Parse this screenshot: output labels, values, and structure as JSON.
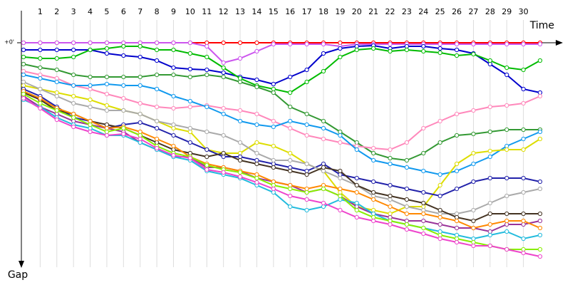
{
  "chart_data": {
    "type": "line",
    "x_label": "Time",
    "y_label": "Gap",
    "x": [
      0,
      1,
      2,
      3,
      4,
      5,
      6,
      7,
      8,
      9,
      10,
      11,
      12,
      13,
      14,
      15,
      16,
      17,
      18,
      19,
      20,
      21,
      22,
      23,
      24,
      25,
      26,
      27,
      28,
      29,
      30,
      31
    ],
    "xlim": [
      0,
      31
    ],
    "xticks": [
      1,
      2,
      3,
      4,
      5,
      6,
      7,
      8,
      9,
      10,
      11,
      12,
      13,
      14,
      15,
      16,
      17,
      18,
      19,
      20,
      21,
      22,
      23,
      24,
      25,
      26,
      27,
      28,
      29,
      30
    ],
    "ylim": [
      0,
      315
    ],
    "yticks": [
      {
        "value": 0,
        "label": "+0'"
      }
    ],
    "grid": true,
    "series": [
      {
        "color": "#ff0000",
        "values": [
          0,
          0,
          0,
          0,
          0,
          0,
          0,
          0,
          0,
          0,
          0,
          0,
          0,
          0,
          0,
          0,
          0,
          0,
          0,
          0,
          0,
          0,
          0,
          0,
          0,
          0,
          0,
          0,
          0,
          0,
          0,
          0
        ]
      },
      {
        "color": "#cc55ee",
        "values": [
          0,
          0,
          0,
          0,
          0,
          0,
          0,
          0,
          0,
          0,
          0,
          5,
          28,
          22,
          12,
          2,
          2,
          2,
          2,
          5,
          2,
          2,
          2,
          2,
          2,
          2,
          2,
          2,
          2,
          2,
          2,
          2
        ]
      },
      {
        "color": "#0000cc",
        "values": [
          10,
          10,
          10,
          10,
          10,
          15,
          18,
          20,
          25,
          35,
          37,
          38,
          42,
          48,
          52,
          58,
          48,
          38,
          15,
          8,
          5,
          4,
          8,
          5,
          5,
          8,
          10,
          15,
          30,
          45,
          65,
          70
        ]
      },
      {
        "color": "#00bb00",
        "values": [
          20,
          22,
          22,
          20,
          10,
          8,
          5,
          5,
          10,
          10,
          15,
          20,
          35,
          50,
          60,
          65,
          70,
          55,
          40,
          20,
          10,
          8,
          12,
          10,
          12,
          14,
          18,
          16,
          25,
          35,
          38,
          25
        ]
      },
      {
        "color": "#339933",
        "values": [
          30,
          35,
          38,
          45,
          48,
          48,
          48,
          48,
          45,
          45,
          48,
          45,
          48,
          55,
          62,
          70,
          90,
          100,
          110,
          125,
          140,
          155,
          162,
          165,
          155,
          140,
          130,
          128,
          125,
          122,
          122,
          122
        ]
      },
      {
        "color": "#ff88bb",
        "values": [
          40,
          45,
          50,
          60,
          65,
          72,
          78,
          85,
          90,
          92,
          90,
          88,
          92,
          95,
          100,
          110,
          120,
          130,
          135,
          140,
          145,
          148,
          150,
          140,
          120,
          110,
          100,
          95,
          90,
          88,
          85,
          75
        ]
      },
      {
        "color": "#1199ee",
        "values": [
          45,
          50,
          55,
          60,
          60,
          58,
          60,
          60,
          65,
          75,
          82,
          90,
          100,
          110,
          115,
          118,
          110,
          115,
          120,
          130,
          150,
          165,
          170,
          175,
          180,
          185,
          180,
          170,
          160,
          145,
          135,
          125
        ]
      },
      {
        "color": "#dddd00",
        "values": [
          60,
          65,
          70,
          75,
          80,
          88,
          95,
          100,
          110,
          120,
          125,
          150,
          155,
          155,
          140,
          145,
          155,
          170,
          180,
          210,
          230,
          235,
          240,
          230,
          230,
          200,
          170,
          155,
          152,
          150,
          150,
          135
        ]
      },
      {
        "color": "#2222aa",
        "values": [
          65,
          75,
          90,
          105,
          110,
          120,
          115,
          112,
          120,
          130,
          140,
          150,
          160,
          160,
          165,
          170,
          175,
          180,
          170,
          185,
          190,
          195,
          200,
          205,
          210,
          215,
          205,
          195,
          190,
          190,
          190,
          195
        ]
      },
      {
        "color": "#aaaaaa",
        "values": [
          55,
          65,
          75,
          85,
          90,
          95,
          95,
          100,
          110,
          115,
          120,
          125,
          130,
          140,
          155,
          165,
          165,
          170,
          180,
          190,
          200,
          215,
          220,
          230,
          235,
          240,
          240,
          235,
          225,
          215,
          210,
          205
        ]
      },
      {
        "color": "#443322",
        "values": [
          70,
          80,
          95,
          100,
          110,
          115,
          120,
          130,
          140,
          150,
          155,
          160,
          155,
          165,
          170,
          175,
          180,
          185,
          175,
          180,
          200,
          210,
          215,
          220,
          225,
          235,
          245,
          250,
          240,
          240,
          240,
          240
        ]
      },
      {
        "color": "#993399",
        "values": [
          75,
          90,
          100,
          110,
          115,
          120,
          125,
          140,
          150,
          160,
          160,
          175,
          175,
          180,
          190,
          195,
          200,
          210,
          205,
          215,
          230,
          240,
          245,
          250,
          250,
          255,
          260,
          260,
          265,
          255,
          255,
          250
        ]
      },
      {
        "color": "#22bbdd",
        "values": [
          80,
          90,
          105,
          115,
          120,
          130,
          130,
          140,
          150,
          160,
          165,
          180,
          185,
          190,
          200,
          210,
          230,
          235,
          230,
          220,
          225,
          240,
          250,
          255,
          260,
          265,
          270,
          275,
          270,
          265,
          275,
          270
        ]
      },
      {
        "color": "#ff8800",
        "values": [
          68,
          78,
          92,
          100,
          110,
          120,
          118,
          125,
          135,
          145,
          160,
          170,
          175,
          180,
          185,
          195,
          200,
          205,
          200,
          205,
          210,
          220,
          230,
          240,
          240,
          245,
          250,
          260,
          255,
          250,
          250,
          260
        ]
      },
      {
        "color": "#88ee00",
        "values": [
          72,
          85,
          95,
          105,
          115,
          125,
          120,
          130,
          145,
          155,
          160,
          172,
          178,
          182,
          190,
          200,
          205,
          210,
          205,
          215,
          235,
          245,
          250,
          255,
          260,
          270,
          275,
          280,
          285,
          290,
          290,
          290
        ]
      },
      {
        "color": "#ee44cc",
        "values": [
          78,
          92,
          108,
          118,
          125,
          130,
          128,
          135,
          148,
          158,
          162,
          178,
          182,
          188,
          196,
          205,
          215,
          220,
          225,
          235,
          245,
          250,
          255,
          262,
          268,
          275,
          280,
          285,
          285,
          290,
          295,
          300
        ]
      }
    ]
  }
}
